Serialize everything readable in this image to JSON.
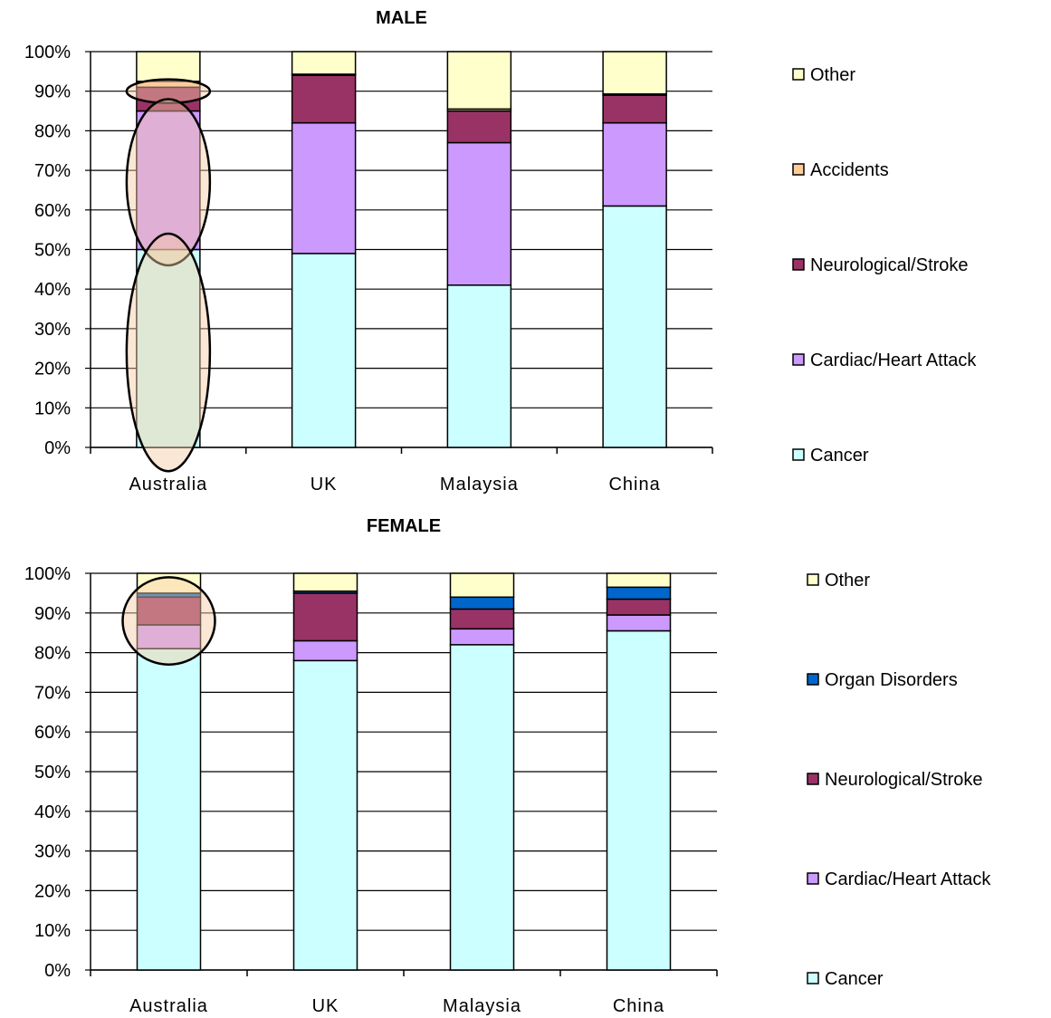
{
  "chart_data": [
    {
      "type": "bar",
      "stacked": true,
      "title": "MALE",
      "categories": [
        "Australia",
        "UK",
        "Malaysia",
        "China"
      ],
      "ylim": [
        0,
        100
      ],
      "yticks": [
        "0%",
        "10%",
        "20%",
        "30%",
        "40%",
        "50%",
        "60%",
        "70%",
        "80%",
        "90%",
        "100%"
      ],
      "grid": true,
      "legend_position": "right",
      "series": [
        {
          "name": "Cancer",
          "color": "#ccffff",
          "values": [
            50,
            49,
            41,
            61
          ]
        },
        {
          "name": "Cardiac/Heart Attack",
          "color": "#cc99ff",
          "values": [
            35,
            33,
            36,
            21
          ]
        },
        {
          "name": "Neurological/Stroke",
          "color": "#993366",
          "values": [
            6,
            12,
            8,
            7
          ]
        },
        {
          "name": "Accidents",
          "color": "#ffcc99",
          "values": [
            1.5,
            0.3,
            0.5,
            0.3
          ]
        },
        {
          "name": "Other",
          "color": "#ffffcc",
          "values": [
            7.5,
            5.7,
            14.5,
            10.7
          ]
        }
      ],
      "highlights": [
        {
          "label": "Australia accidents/stroke",
          "category": "Australia",
          "y_range": [
            87,
            93
          ]
        },
        {
          "label": "Australia cardiac",
          "category": "Australia",
          "y_range": [
            46,
            88
          ]
        },
        {
          "label": "Australia cancer",
          "category": "Australia",
          "y_range": [
            -6,
            54
          ]
        }
      ]
    },
    {
      "type": "bar",
      "stacked": true,
      "title": "FEMALE",
      "categories": [
        "Australia",
        "UK",
        "Malaysia",
        "China"
      ],
      "ylim": [
        0,
        100
      ],
      "yticks": [
        "0%",
        "10%",
        "20%",
        "30%",
        "40%",
        "50%",
        "60%",
        "70%",
        "80%",
        "90%",
        "100%"
      ],
      "grid": true,
      "legend_position": "right",
      "series": [
        {
          "name": "Cancer",
          "color": "#ccffff",
          "values": [
            81,
            78,
            82,
            85.5
          ]
        },
        {
          "name": "Cardiac/Heart Attack",
          "color": "#cc99ff",
          "values": [
            6,
            5,
            4,
            4
          ]
        },
        {
          "name": "Neurological/Stroke",
          "color": "#993366",
          "values": [
            7,
            12,
            5,
            4
          ]
        },
        {
          "name": "Organ Disorders",
          "color": "#0066cc",
          "values": [
            1,
            0.5,
            3,
            3
          ]
        },
        {
          "name": "Other",
          "color": "#ffffcc",
          "values": [
            5,
            4.5,
            6,
            3.5
          ]
        }
      ],
      "highlights": [
        {
          "label": "Australia non-cancer",
          "category": "Australia",
          "y_range": [
            77,
            99
          ]
        }
      ]
    }
  ]
}
